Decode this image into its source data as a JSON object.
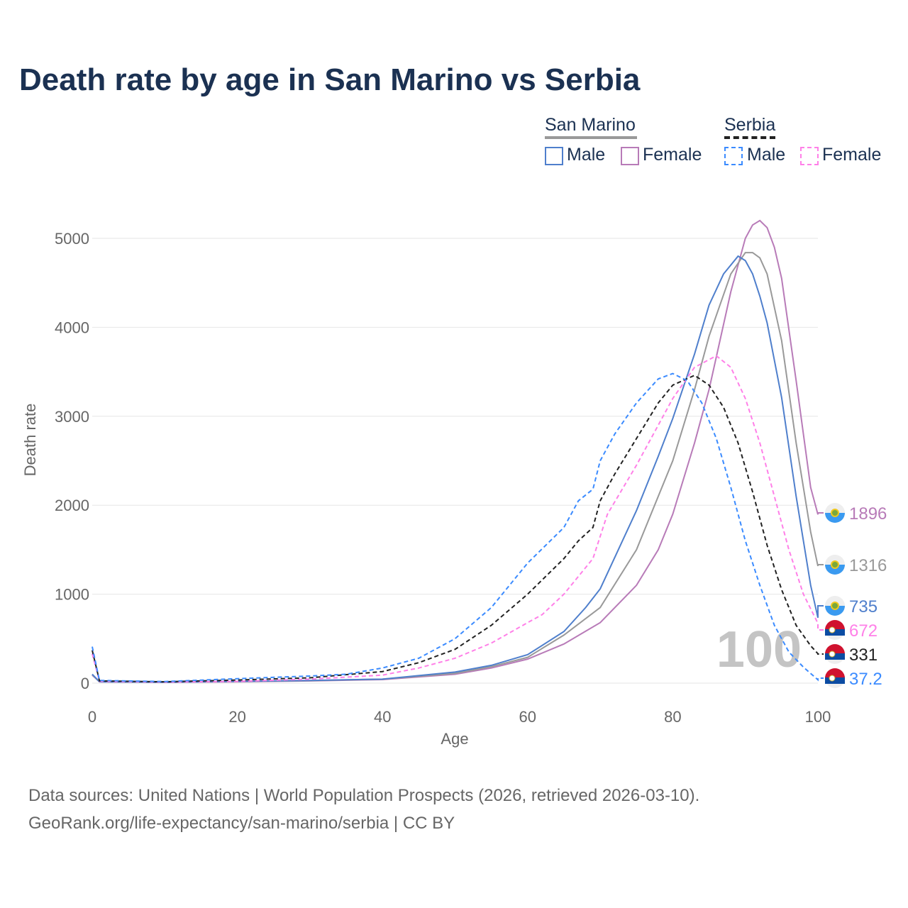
{
  "title": "Death rate by age in San Marino vs Serbia",
  "legend": {
    "groups": [
      {
        "name": "San Marino",
        "male": "Male",
        "female": "Female"
      },
      {
        "name": "Serbia",
        "male": "Male",
        "female": "Female"
      }
    ]
  },
  "footer": {
    "line1": "Data sources: United Nations | World Population Prospects (2026, retrieved 2026-03-10).",
    "line2": "GeoRank.org/life-expectancy/san-marino/serbia | CC BY"
  },
  "chart_data": {
    "type": "line",
    "title": "Death rate by age in San Marino vs Serbia",
    "xlabel": "Age",
    "ylabel": "Death rate",
    "xlim": [
      0,
      100
    ],
    "ylim": [
      0,
      5400
    ],
    "xticks": [
      "0",
      "20",
      "40",
      "60",
      "80",
      "100"
    ],
    "yticks": [
      "0",
      "1000",
      "2000",
      "3000",
      "4000",
      "5000"
    ],
    "year_watermark": "100",
    "series": [
      {
        "name": "San Marino Female",
        "color": "#b87bb8",
        "dash": false,
        "end_label": "1896",
        "flag": "san-marino",
        "points": [
          [
            0,
            90
          ],
          [
            1,
            15
          ],
          [
            10,
            10
          ],
          [
            20,
            15
          ],
          [
            30,
            25
          ],
          [
            40,
            40
          ],
          [
            50,
            100
          ],
          [
            55,
            170
          ],
          [
            60,
            270
          ],
          [
            65,
            440
          ],
          [
            70,
            680
          ],
          [
            75,
            1100
          ],
          [
            78,
            1500
          ],
          [
            80,
            1900
          ],
          [
            83,
            2700
          ],
          [
            85,
            3300
          ],
          [
            88,
            4400
          ],
          [
            90,
            5000
          ],
          [
            91,
            5150
          ],
          [
            92,
            5200
          ],
          [
            93,
            5120
          ],
          [
            94,
            4900
          ],
          [
            95,
            4550
          ],
          [
            97,
            3400
          ],
          [
            99,
            2200
          ],
          [
            100,
            1896
          ]
        ]
      },
      {
        "name": "San Marino Total",
        "color": "#999999",
        "dash": false,
        "end_label": "1316",
        "flag": "san-marino",
        "points": [
          [
            0,
            95
          ],
          [
            1,
            15
          ],
          [
            10,
            10
          ],
          [
            20,
            18
          ],
          [
            30,
            28
          ],
          [
            40,
            45
          ],
          [
            50,
            110
          ],
          [
            55,
            185
          ],
          [
            60,
            290
          ],
          [
            65,
            540
          ],
          [
            70,
            850
          ],
          [
            75,
            1500
          ],
          [
            80,
            2500
          ],
          [
            83,
            3300
          ],
          [
            85,
            3900
          ],
          [
            88,
            4600
          ],
          [
            90,
            4840
          ],
          [
            91,
            4840
          ],
          [
            92,
            4780
          ],
          [
            93,
            4600
          ],
          [
            95,
            3850
          ],
          [
            97,
            2700
          ],
          [
            99,
            1700
          ],
          [
            100,
            1316
          ]
        ]
      },
      {
        "name": "San Marino Male",
        "color": "#4f7fcc",
        "dash": false,
        "end_label": "735",
        "flag": "san-marino",
        "points": [
          [
            0,
            100
          ],
          [
            1,
            15
          ],
          [
            10,
            10
          ],
          [
            20,
            20
          ],
          [
            30,
            30
          ],
          [
            40,
            45
          ],
          [
            50,
            125
          ],
          [
            55,
            200
          ],
          [
            60,
            320
          ],
          [
            65,
            580
          ],
          [
            68,
            850
          ],
          [
            70,
            1060
          ],
          [
            75,
            1940
          ],
          [
            78,
            2550
          ],
          [
            80,
            2975
          ],
          [
            83,
            3700
          ],
          [
            85,
            4250
          ],
          [
            87,
            4600
          ],
          [
            89,
            4800
          ],
          [
            90,
            4750
          ],
          [
            91,
            4600
          ],
          [
            92,
            4350
          ],
          [
            93,
            4050
          ],
          [
            95,
            3210
          ],
          [
            97,
            2100
          ],
          [
            99,
            1100
          ],
          [
            100,
            735
          ]
        ]
      },
      {
        "name": "Serbia Female",
        "color": "#ff80e8",
        "dash": true,
        "end_label": "672",
        "flag": "serbia",
        "points": [
          [
            0,
            330
          ],
          [
            1,
            20
          ],
          [
            10,
            12
          ],
          [
            20,
            20
          ],
          [
            30,
            45
          ],
          [
            40,
            90
          ],
          [
            45,
            170
          ],
          [
            50,
            280
          ],
          [
            55,
            450
          ],
          [
            60,
            680
          ],
          [
            62,
            770
          ],
          [
            65,
            1000
          ],
          [
            68,
            1300
          ],
          [
            69,
            1400
          ],
          [
            71,
            1900
          ],
          [
            75,
            2450
          ],
          [
            80,
            3200
          ],
          [
            83,
            3550
          ],
          [
            86,
            3680
          ],
          [
            88,
            3550
          ],
          [
            90,
            3200
          ],
          [
            92,
            2700
          ],
          [
            94,
            2100
          ],
          [
            96,
            1500
          ],
          [
            98,
            1000
          ],
          [
            100,
            672
          ]
        ]
      },
      {
        "name": "Serbia Total",
        "color": "#222222",
        "dash": true,
        "end_label": "331",
        "flag": "serbia",
        "points": [
          [
            0,
            370
          ],
          [
            1,
            25
          ],
          [
            10,
            15
          ],
          [
            20,
            35
          ],
          [
            30,
            60
          ],
          [
            40,
            130
          ],
          [
            45,
            230
          ],
          [
            50,
            380
          ],
          [
            55,
            650
          ],
          [
            60,
            1000
          ],
          [
            65,
            1400
          ],
          [
            67,
            1600
          ],
          [
            69,
            1750
          ],
          [
            70,
            2050
          ],
          [
            72,
            2350
          ],
          [
            75,
            2750
          ],
          [
            78,
            3150
          ],
          [
            80,
            3350
          ],
          [
            83,
            3460
          ],
          [
            85,
            3350
          ],
          [
            87,
            3100
          ],
          [
            89,
            2700
          ],
          [
            91,
            2150
          ],
          [
            93,
            1550
          ],
          [
            95,
            1050
          ],
          [
            97,
            650
          ],
          [
            99,
            420
          ],
          [
            100,
            331
          ]
        ]
      },
      {
        "name": "Serbia Male",
        "color": "#3b8bff",
        "dash": true,
        "end_label": "37.2",
        "flag": "serbia",
        "points": [
          [
            0,
            410
          ],
          [
            1,
            30
          ],
          [
            10,
            18
          ],
          [
            20,
            50
          ],
          [
            30,
            80
          ],
          [
            35,
            100
          ],
          [
            40,
            170
          ],
          [
            45,
            280
          ],
          [
            50,
            500
          ],
          [
            55,
            850
          ],
          [
            57,
            1050
          ],
          [
            60,
            1350
          ],
          [
            65,
            1750
          ],
          [
            67,
            2050
          ],
          [
            69,
            2180
          ],
          [
            70,
            2500
          ],
          [
            72,
            2800
          ],
          [
            75,
            3150
          ],
          [
            78,
            3420
          ],
          [
            80,
            3480
          ],
          [
            82,
            3400
          ],
          [
            84,
            3150
          ],
          [
            86,
            2750
          ],
          [
            88,
            2200
          ],
          [
            90,
            1600
          ],
          [
            92,
            1100
          ],
          [
            94,
            650
          ],
          [
            96,
            350
          ],
          [
            98,
            180
          ],
          [
            100,
            37.2
          ]
        ]
      }
    ]
  }
}
